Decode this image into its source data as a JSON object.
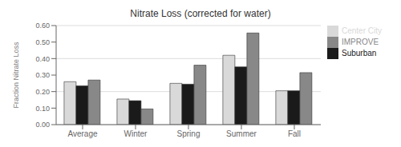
{
  "chart_data": {
    "type": "bar",
    "title": "Nitrate Loss (corrected for water)",
    "ylabel": "Fraction Nitrate Loss",
    "categories": [
      "Average",
      "Winter",
      "Spring",
      "Summer",
      "Fall"
    ],
    "series": [
      {
        "name": "Center City",
        "color": "#d9d9d9",
        "values": [
          0.26,
          0.155,
          0.25,
          0.42,
          0.205
        ]
      },
      {
        "name": "Suburban",
        "color": "#1a1a1a",
        "values": [
          0.235,
          0.145,
          0.245,
          0.35,
          0.205
        ]
      },
      {
        "name": "IMPROVE",
        "color": "#888888",
        "values": [
          0.27,
          0.095,
          0.36,
          0.555,
          0.315
        ]
      }
    ],
    "ylim": [
      0.0,
      0.6
    ],
    "yticks": [
      {
        "value": 0.0,
        "label": "0.00"
      },
      {
        "value": 0.1,
        "label": "0.10"
      },
      {
        "value": 0.2,
        "label": "0.20"
      },
      {
        "value": 0.3,
        "label": "0.30"
      },
      {
        "value": 0.4,
        "label": "0.40"
      },
      {
        "value": 0.5,
        "label": "0.50"
      },
      {
        "value": 0.6,
        "label": "0.60"
      }
    ],
    "grid": true,
    "legend": "upper right"
  }
}
